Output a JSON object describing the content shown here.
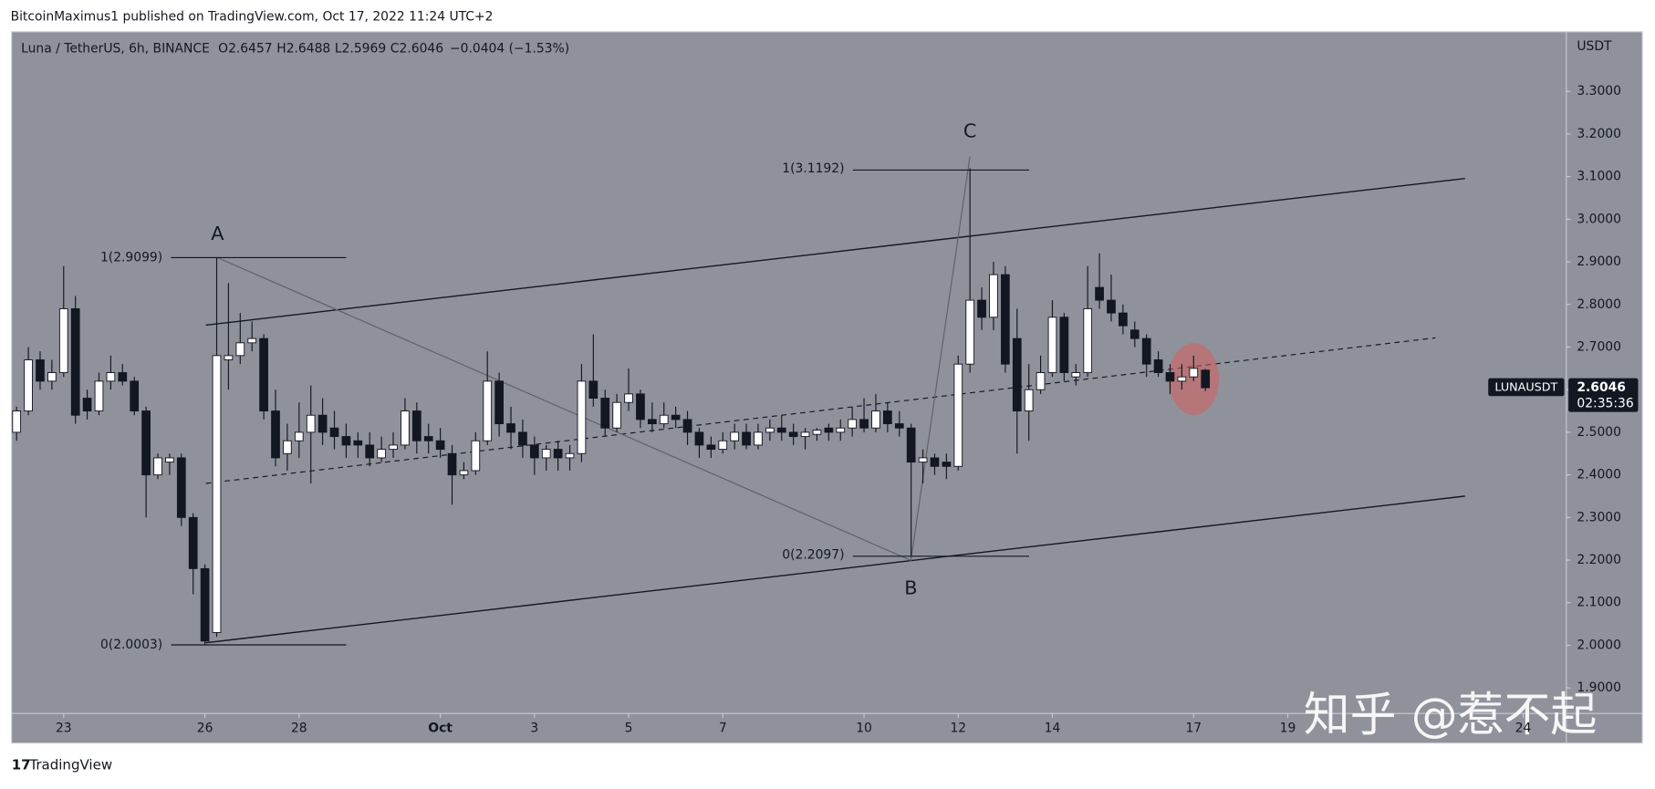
{
  "header": "BitcoinMaximus1 published on TradingView.com, Oct 17, 2022 11:24 UTC+2",
  "footer": "TradingView",
  "watermark": "知乎 @惹不起",
  "chart_data": {
    "type": "candlestick",
    "title": "Luna / TetherUS, 6h, BINANCE",
    "legend_values": [
      {
        "label": "O",
        "value": 2.6457
      },
      {
        "label": "H",
        "value": 2.6488
      },
      {
        "label": "L",
        "value": 2.5969
      },
      {
        "label": "C",
        "value": 2.6046
      }
    ],
    "change": "−0.0404 (−1.53%)",
    "y_axis_label": "USDT",
    "price_tag": {
      "symbol": "LUNAUSDT",
      "value": 2.6046,
      "countdown": "02:35:36"
    },
    "annotations": [
      "A",
      "B",
      "C",
      "1(2.9099)",
      "0(2.0003)",
      "1(3.1192)",
      "0(2.2097)"
    ],
    "up_color": "#ffffff",
    "down_color": "#131722",
    "xlim": [
      "2022-09-21 22:00",
      "2022-10-24 22:00"
    ],
    "xticks": [
      {
        "value": "2022-09-23 00:00",
        "label": "23"
      },
      {
        "value": "2022-09-26 00:00",
        "label": "26"
      },
      {
        "value": "2022-09-28 00:00",
        "label": "28"
      },
      {
        "value": "2022-10-01 00:00",
        "label": "Oct"
      },
      {
        "value": "2022-10-03 00:00",
        "label": "3"
      },
      {
        "value": "2022-10-05 00:00",
        "label": "5"
      },
      {
        "value": "2022-10-07 00:00",
        "label": "7"
      },
      {
        "value": "2022-10-10 00:00",
        "label": "10"
      },
      {
        "value": "2022-10-12 00:00",
        "label": "12"
      },
      {
        "value": "2022-10-14 00:00",
        "label": "14"
      },
      {
        "value": "2022-10-17 00:00",
        "label": "17"
      },
      {
        "value": "2022-10-19 00:00",
        "label": "19"
      },
      {
        "value": "2022-10-24 00:00",
        "label": "24"
      }
    ],
    "ylim": [
      1.84,
      3.44
    ],
    "yticks": [
      {
        "value": 1.9,
        "label": "1.9000"
      },
      {
        "value": 2.0,
        "label": "2.0000"
      },
      {
        "value": 2.1,
        "label": "2.1000"
      },
      {
        "value": 2.2,
        "label": "2.2000"
      },
      {
        "value": 2.3,
        "label": "2.3000"
      },
      {
        "value": 2.4,
        "label": "2.4000"
      },
      {
        "value": 2.5,
        "label": "2.5000"
      },
      {
        "value": 2.6,
        "label": "2.6000"
      },
      {
        "value": 2.7,
        "label": "2.7000"
      },
      {
        "value": 2.8,
        "label": "2.8000"
      },
      {
        "value": 2.9,
        "label": "2.9000"
      },
      {
        "value": 3.0,
        "label": "3.0000"
      },
      {
        "value": 3.1,
        "label": "3.1000"
      },
      {
        "value": 3.2,
        "label": "3.2000"
      },
      {
        "value": 3.3,
        "label": "3.3000"
      }
    ],
    "x": [
      "2022-09-22 00:00",
      "2022-09-22 06:00",
      "2022-09-22 12:00",
      "2022-09-22 18:00",
      "2022-09-23 00:00",
      "2022-09-23 06:00",
      "2022-09-23 12:00",
      "2022-09-23 18:00",
      "2022-09-24 00:00",
      "2022-09-24 06:00",
      "2022-09-24 12:00",
      "2022-09-24 18:00",
      "2022-09-25 00:00",
      "2022-09-25 06:00",
      "2022-09-25 12:00",
      "2022-09-25 18:00",
      "2022-09-26 00:00",
      "2022-09-26 06:00",
      "2022-09-26 12:00",
      "2022-09-26 18:00",
      "2022-09-27 00:00",
      "2022-09-27 06:00",
      "2022-09-27 12:00",
      "2022-09-27 18:00",
      "2022-09-28 00:00",
      "2022-09-28 06:00",
      "2022-09-28 12:00",
      "2022-09-28 18:00",
      "2022-09-29 00:00",
      "2022-09-29 06:00",
      "2022-09-29 12:00",
      "2022-09-29 18:00",
      "2022-09-30 00:00",
      "2022-09-30 06:00",
      "2022-09-30 12:00",
      "2022-09-30 18:00",
      "2022-10-01 00:00",
      "2022-10-01 06:00",
      "2022-10-01 12:00",
      "2022-10-01 18:00",
      "2022-10-02 00:00",
      "2022-10-02 06:00",
      "2022-10-02 12:00",
      "2022-10-02 18:00",
      "2022-10-03 00:00",
      "2022-10-03 06:00",
      "2022-10-03 12:00",
      "2022-10-03 18:00",
      "2022-10-04 00:00",
      "2022-10-04 06:00",
      "2022-10-04 12:00",
      "2022-10-04 18:00",
      "2022-10-05 00:00",
      "2022-10-05 06:00",
      "2022-10-05 12:00",
      "2022-10-05 18:00",
      "2022-10-06 00:00",
      "2022-10-06 06:00",
      "2022-10-06 12:00",
      "2022-10-06 18:00",
      "2022-10-07 00:00",
      "2022-10-07 06:00",
      "2022-10-07 12:00",
      "2022-10-07 18:00",
      "2022-10-08 00:00",
      "2022-10-08 06:00",
      "2022-10-08 12:00",
      "2022-10-08 18:00",
      "2022-10-09 00:00",
      "2022-10-09 06:00",
      "2022-10-09 12:00",
      "2022-10-09 18:00",
      "2022-10-10 00:00",
      "2022-10-10 06:00",
      "2022-10-10 12:00",
      "2022-10-10 18:00",
      "2022-10-11 00:00",
      "2022-10-11 06:00",
      "2022-10-11 12:00",
      "2022-10-11 18:00",
      "2022-10-12 00:00",
      "2022-10-12 06:00",
      "2022-10-12 12:00",
      "2022-10-12 18:00",
      "2022-10-13 00:00",
      "2022-10-13 06:00",
      "2022-10-13 12:00",
      "2022-10-13 18:00",
      "2022-10-14 00:00",
      "2022-10-14 06:00",
      "2022-10-14 12:00",
      "2022-10-14 18:00",
      "2022-10-15 00:00",
      "2022-10-15 06:00",
      "2022-10-15 12:00",
      "2022-10-15 18:00",
      "2022-10-16 00:00",
      "2022-10-16 06:00",
      "2022-10-16 12:00",
      "2022-10-16 18:00",
      "2022-10-17 00:00",
      "2022-10-17 06:00"
    ],
    "open": [
      2.5,
      2.55,
      2.67,
      2.62,
      2.64,
      2.79,
      2.58,
      2.55,
      2.62,
      2.64,
      2.62,
      2.55,
      2.4,
      2.43,
      2.44,
      2.3,
      2.18,
      2.03,
      2.67,
      2.68,
      2.71,
      2.72,
      2.55,
      2.45,
      2.48,
      2.5,
      2.54,
      2.51,
      2.49,
      2.48,
      2.47,
      2.44,
      2.46,
      2.47,
      2.55,
      2.49,
      2.48,
      2.45,
      2.4,
      2.41,
      2.48,
      2.62,
      2.52,
      2.5,
      2.47,
      2.44,
      2.46,
      2.44,
      2.45,
      2.62,
      2.58,
      2.51,
      2.57,
      2.59,
      2.53,
      2.52,
      2.54,
      2.53,
      2.5,
      2.47,
      2.46,
      2.48,
      2.5,
      2.47,
      2.5,
      2.51,
      2.5,
      2.49,
      2.495,
      2.51,
      2.5,
      2.51,
      2.53,
      2.51,
      2.55,
      2.52,
      2.51,
      2.43,
      2.44,
      2.43,
      2.42,
      2.66,
      2.81,
      2.77,
      2.87,
      2.72,
      2.55,
      2.6,
      2.64,
      2.77,
      2.63,
      2.64,
      2.84,
      2.81,
      2.78,
      2.74,
      2.72,
      2.67,
      2.64,
      2.62,
      2.63,
      2.6457
    ],
    "high": [
      2.56,
      2.7,
      2.69,
      2.67,
      2.89,
      2.82,
      2.6,
      2.64,
      2.68,
      2.66,
      2.63,
      2.56,
      2.45,
      2.45,
      2.45,
      2.31,
      2.19,
      2.91,
      2.85,
      2.78,
      2.76,
      2.73,
      2.6,
      2.52,
      2.57,
      2.61,
      2.58,
      2.55,
      2.52,
      2.5,
      2.5,
      2.49,
      2.5,
      2.58,
      2.57,
      2.52,
      2.51,
      2.47,
      2.43,
      2.5,
      2.69,
      2.64,
      2.56,
      2.53,
      2.49,
      2.47,
      2.48,
      2.47,
      2.66,
      2.73,
      2.6,
      2.59,
      2.65,
      2.6,
      2.57,
      2.57,
      2.56,
      2.55,
      2.51,
      2.49,
      2.5,
      2.52,
      2.52,
      2.52,
      2.53,
      2.54,
      2.52,
      2.51,
      2.51,
      2.52,
      2.53,
      2.56,
      2.58,
      2.59,
      2.57,
      2.55,
      2.52,
      2.46,
      2.45,
      2.45,
      2.68,
      3.12,
      2.84,
      2.9,
      2.89,
      2.79,
      2.66,
      2.68,
      2.81,
      2.78,
      2.66,
      2.89,
      2.92,
      2.87,
      2.8,
      2.76,
      2.73,
      2.69,
      2.66,
      2.66,
      2.68,
      2.6488
    ],
    "low": [
      2.48,
      2.54,
      2.6,
      2.6,
      2.63,
      2.52,
      2.53,
      2.54,
      2.6,
      2.61,
      2.54,
      2.3,
      2.39,
      2.4,
      2.28,
      2.12,
      2.0,
      2.02,
      2.6,
      2.66,
      2.69,
      2.53,
      2.42,
      2.41,
      2.44,
      2.38,
      2.47,
      2.46,
      2.44,
      2.44,
      2.42,
      2.43,
      2.44,
      2.46,
      2.45,
      2.45,
      2.44,
      2.33,
      2.39,
      2.4,
      2.47,
      2.49,
      2.46,
      2.44,
      2.4,
      2.41,
      2.41,
      2.41,
      2.43,
      2.56,
      2.49,
      2.5,
      2.55,
      2.51,
      2.5,
      2.51,
      2.51,
      2.47,
      2.44,
      2.44,
      2.45,
      2.46,
      2.46,
      2.46,
      2.48,
      2.48,
      2.47,
      2.46,
      2.48,
      2.48,
      2.48,
      2.49,
      2.5,
      2.5,
      2.5,
      2.49,
      2.21,
      2.38,
      2.4,
      2.39,
      2.41,
      2.64,
      2.74,
      2.74,
      2.64,
      2.45,
      2.48,
      2.59,
      2.63,
      2.62,
      2.61,
      2.63,
      2.79,
      2.76,
      2.73,
      2.7,
      2.63,
      2.63,
      2.59,
      2.6,
      2.62,
      2.5969
    ],
    "close": [
      2.55,
      2.67,
      2.62,
      2.64,
      2.79,
      2.54,
      2.55,
      2.62,
      2.64,
      2.62,
      2.55,
      2.4,
      2.44,
      2.44,
      2.3,
      2.18,
      2.01,
      2.68,
      2.68,
      2.71,
      2.72,
      2.55,
      2.44,
      2.48,
      2.5,
      2.54,
      2.5,
      2.49,
      2.47,
      2.47,
      2.44,
      2.46,
      2.47,
      2.55,
      2.48,
      2.48,
      2.46,
      2.4,
      2.41,
      2.48,
      2.62,
      2.52,
      2.5,
      2.47,
      2.44,
      2.46,
      2.44,
      2.45,
      2.62,
      2.58,
      2.51,
      2.57,
      2.59,
      2.53,
      2.52,
      2.54,
      2.53,
      2.5,
      2.47,
      2.46,
      2.48,
      2.5,
      2.47,
      2.5,
      2.51,
      2.5,
      2.49,
      2.5,
      2.505,
      2.5,
      2.51,
      2.53,
      2.51,
      2.55,
      2.52,
      2.51,
      2.43,
      2.44,
      2.42,
      2.42,
      2.66,
      2.81,
      2.77,
      2.87,
      2.66,
      2.55,
      2.6,
      2.64,
      2.77,
      2.64,
      2.64,
      2.79,
      2.81,
      2.78,
      2.75,
      2.72,
      2.66,
      2.64,
      2.62,
      2.63,
      2.65,
      2.6046
    ]
  }
}
